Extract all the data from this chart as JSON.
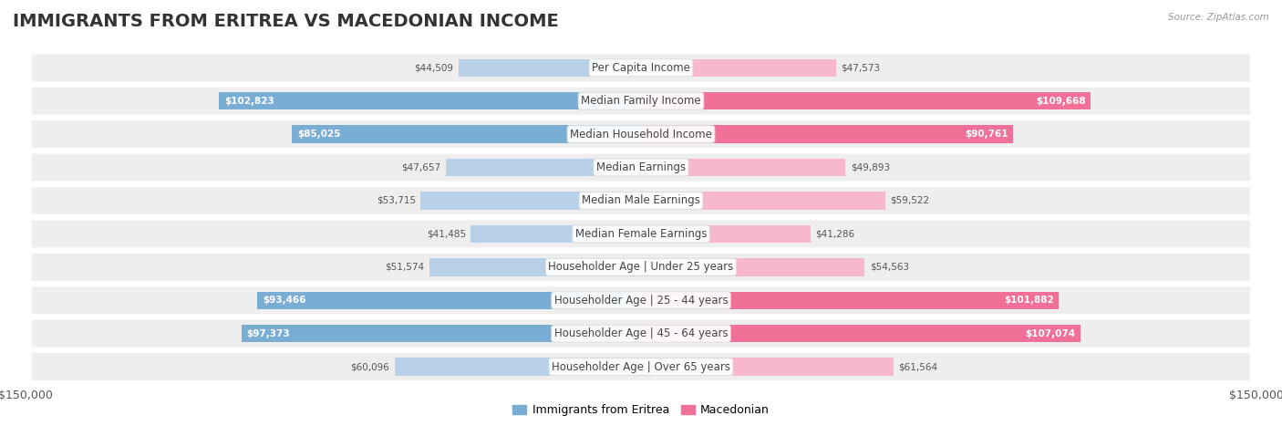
{
  "title": "IMMIGRANTS FROM ERITREA VS MACEDONIAN INCOME",
  "source": "Source: ZipAtlas.com",
  "categories": [
    "Per Capita Income",
    "Median Family Income",
    "Median Household Income",
    "Median Earnings",
    "Median Male Earnings",
    "Median Female Earnings",
    "Householder Age | Under 25 years",
    "Householder Age | 25 - 44 years",
    "Householder Age | 45 - 64 years",
    "Householder Age | Over 65 years"
  ],
  "eritrea_values": [
    44509,
    102823,
    85025,
    47657,
    53715,
    41485,
    51574,
    93466,
    97373,
    60096
  ],
  "macedonian_values": [
    47573,
    109668,
    90761,
    49893,
    59522,
    41286,
    54563,
    101882,
    107074,
    61564
  ],
  "eritrea_color_light": "#b8d0e8",
  "eritrea_color_dark": "#7aadd4",
  "macedonian_color_light": "#f8b8cc",
  "macedonian_color_dark": "#f07098",
  "threshold": 65000,
  "background_color": "#ffffff",
  "row_bg_color": "#eeeeee",
  "max_value": 150000,
  "title_fontsize": 14,
  "label_fontsize": 8.5,
  "axis_fontsize": 9,
  "legend_fontsize": 9,
  "legend_label_eritrea": "Immigrants from Eritrea",
  "legend_label_macedonian": "Macedonian"
}
